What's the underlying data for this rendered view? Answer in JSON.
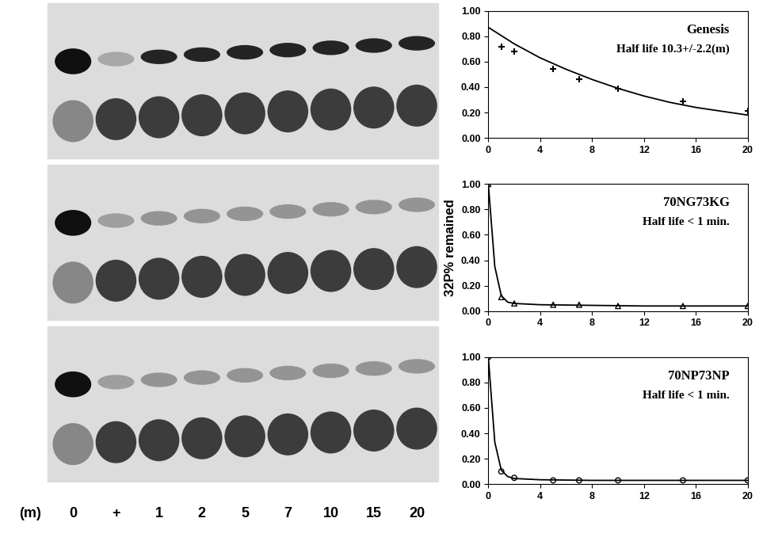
{
  "gel": {
    "lane_axis_label": "(m)",
    "lanes": [
      "0",
      "+",
      "1",
      "2",
      "5",
      "7",
      "10",
      "15",
      "20"
    ]
  },
  "chart_data": [
    {
      "type": "line",
      "title": "Genesis",
      "subtitle": "Half life 10.3+/-2.2(m)",
      "xlim": [
        0,
        20
      ],
      "xticks": [
        0,
        4,
        8,
        12,
        16,
        20
      ],
      "ylim": [
        0,
        1
      ],
      "yticks": [
        {
          "value": 0,
          "label": "0.00"
        },
        {
          "value": 0.2,
          "label": "0.20"
        },
        {
          "value": 0.4,
          "label": "0.40"
        },
        {
          "value": 0.6,
          "label": "0.60"
        },
        {
          "value": 0.8,
          "label": "0.80"
        },
        {
          "value": 1,
          "label": "1.00"
        }
      ],
      "series": [
        {
          "type": "scatter",
          "marker": "+",
          "color": "#000000",
          "x": [
            1,
            2,
            5,
            7,
            10,
            15,
            20
          ],
          "values": [
            0.72,
            0.68,
            0.54,
            0.46,
            0.39,
            0.29,
            0.21
          ]
        },
        {
          "type": "line",
          "line_style": "solid",
          "color": "#000000",
          "x": [
            0,
            2,
            4,
            6,
            8,
            10,
            12,
            14,
            16,
            18,
            20
          ],
          "values": [
            0.87,
            0.74,
            0.63,
            0.54,
            0.46,
            0.39,
            0.33,
            0.28,
            0.24,
            0.21,
            0.18
          ]
        }
      ]
    },
    {
      "type": "line",
      "title": "70NG73KG",
      "subtitle": "Half life < 1 min.",
      "y_label": "32P% remained",
      "xlim": [
        0,
        20
      ],
      "xticks": [
        0,
        4,
        8,
        12,
        16,
        20
      ],
      "ylim": [
        0,
        1
      ],
      "yticks": [
        {
          "value": 0,
          "label": "0.00"
        },
        {
          "value": 0.2,
          "label": "0.20"
        },
        {
          "value": 0.4,
          "label": "0.40"
        },
        {
          "value": 0.6,
          "label": "0.60"
        },
        {
          "value": 0.8,
          "label": "0.80"
        },
        {
          "value": 1,
          "label": "1.00"
        }
      ],
      "series": [
        {
          "type": "scatter",
          "marker": "^",
          "color": "#000000",
          "x": [
            0,
            1,
            2,
            5,
            7,
            10,
            15,
            20
          ],
          "values": [
            1.0,
            0.11,
            0.06,
            0.05,
            0.05,
            0.04,
            0.04,
            0.04
          ]
        },
        {
          "type": "line",
          "line_style": "solid",
          "color": "#000000",
          "x": [
            0,
            0.5,
            1,
            1.5,
            2,
            4,
            8,
            12,
            16,
            20
          ],
          "values": [
            1.0,
            0.35,
            0.12,
            0.07,
            0.06,
            0.05,
            0.045,
            0.04,
            0.04,
            0.04
          ]
        }
      ]
    },
    {
      "type": "line",
      "title": "70NP73NP",
      "subtitle": "Half life < 1 min.",
      "xlim": [
        0,
        20
      ],
      "xticks": [
        0,
        4,
        8,
        12,
        16,
        20
      ],
      "ylim": [
        0,
        1
      ],
      "yticks": [
        {
          "value": 0,
          "label": "0.00"
        },
        {
          "value": 0.2,
          "label": "0.20"
        },
        {
          "value": 0.4,
          "label": "0.40"
        },
        {
          "value": 0.6,
          "label": "0.60"
        },
        {
          "value": 0.8,
          "label": "0.80"
        },
        {
          "value": 1,
          "label": "1.00"
        }
      ],
      "series": [
        {
          "type": "scatter",
          "marker": "o",
          "color": "#000000",
          "x": [
            0,
            1,
            2,
            5,
            7,
            10,
            15,
            20
          ],
          "values": [
            1.0,
            0.1,
            0.05,
            0.03,
            0.03,
            0.03,
            0.03,
            0.03
          ]
        },
        {
          "type": "line",
          "line_style": "solid",
          "color": "#000000",
          "x": [
            0,
            0.5,
            1,
            1.5,
            2,
            4,
            8,
            12,
            16,
            20
          ],
          "values": [
            1.0,
            0.33,
            0.11,
            0.06,
            0.045,
            0.035,
            0.03,
            0.03,
            0.03,
            0.03
          ]
        }
      ]
    }
  ]
}
